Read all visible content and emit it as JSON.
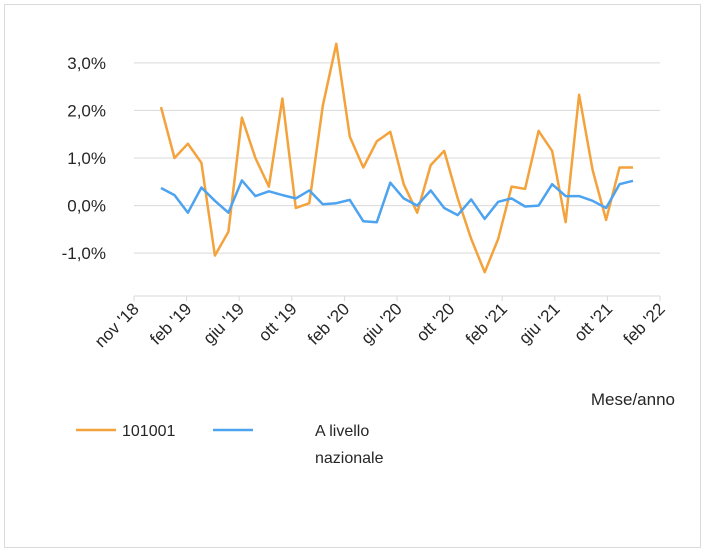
{
  "chart_data": {
    "type": "line",
    "title": "",
    "xlabel": "Mese/anno",
    "ylabel": "",
    "x_ticks": [
      "nov '18",
      "feb '19",
      "giu '19",
      "ott '19",
      "feb '20",
      "giu '20",
      "ott '20",
      "feb '21",
      "giu '21",
      "ott '21",
      "feb '22"
    ],
    "y_ticks": [
      "3,0%",
      "2,0%",
      "1,0%",
      "0,0%",
      "-1,0%"
    ],
    "ylim": [
      -1.9,
      3.9
    ],
    "xlim": [
      "2018-11",
      "2022-02"
    ],
    "grid": "horizontal",
    "legend_position": "bottom",
    "x": [
      "2019-01",
      "2019-02",
      "2019-03",
      "2019-04",
      "2019-05",
      "2019-06",
      "2019-07",
      "2019-08",
      "2019-09",
      "2019-10",
      "2019-11",
      "2019-12",
      "2020-01",
      "2020-02",
      "2020-03",
      "2020-04",
      "2020-05",
      "2020-06",
      "2020-07",
      "2020-08",
      "2020-09",
      "2020-10",
      "2020-11",
      "2020-12",
      "2021-01",
      "2021-02",
      "2021-03",
      "2021-04",
      "2021-05",
      "2021-06",
      "2021-07",
      "2021-08",
      "2021-09",
      "2021-10",
      "2021-11",
      "2021-12",
      "2022-01"
    ],
    "series": [
      {
        "name": "101001",
        "color": "#f4a23c",
        "values": [
          2.07,
          1.0,
          1.3,
          0.9,
          -1.05,
          -0.55,
          1.85,
          1.0,
          0.4,
          2.25,
          -0.05,
          0.05,
          2.1,
          3.4,
          1.45,
          0.8,
          1.35,
          1.55,
          0.45,
          -0.15,
          0.85,
          1.15,
          0.15,
          -0.7,
          -1.4,
          -0.7,
          0.4,
          0.35,
          1.57,
          1.15,
          -0.35,
          2.33,
          0.75,
          -0.3,
          0.8,
          0.8,
          null
        ]
      },
      {
        "name": "A livello nazionale",
        "color": "#4da3f0",
        "values": [
          0.37,
          0.22,
          -0.15,
          0.38,
          0.1,
          -0.15,
          0.53,
          0.2,
          0.3,
          0.22,
          0.15,
          0.32,
          0.03,
          0.05,
          0.12,
          -0.33,
          -0.35,
          0.48,
          0.15,
          0.0,
          0.32,
          -0.05,
          -0.2,
          0.13,
          -0.28,
          0.08,
          0.15,
          -0.02,
          0.0,
          0.45,
          0.2,
          0.2,
          0.1,
          -0.05,
          0.45,
          0.52,
          null
        ]
      }
    ]
  },
  "legend": {
    "entries": [
      {
        "label": "101001",
        "color": "#f4a23c"
      },
      {
        "label_line1": "A livello",
        "label_line2": "nazionale",
        "color": "#4da3f0"
      }
    ]
  }
}
